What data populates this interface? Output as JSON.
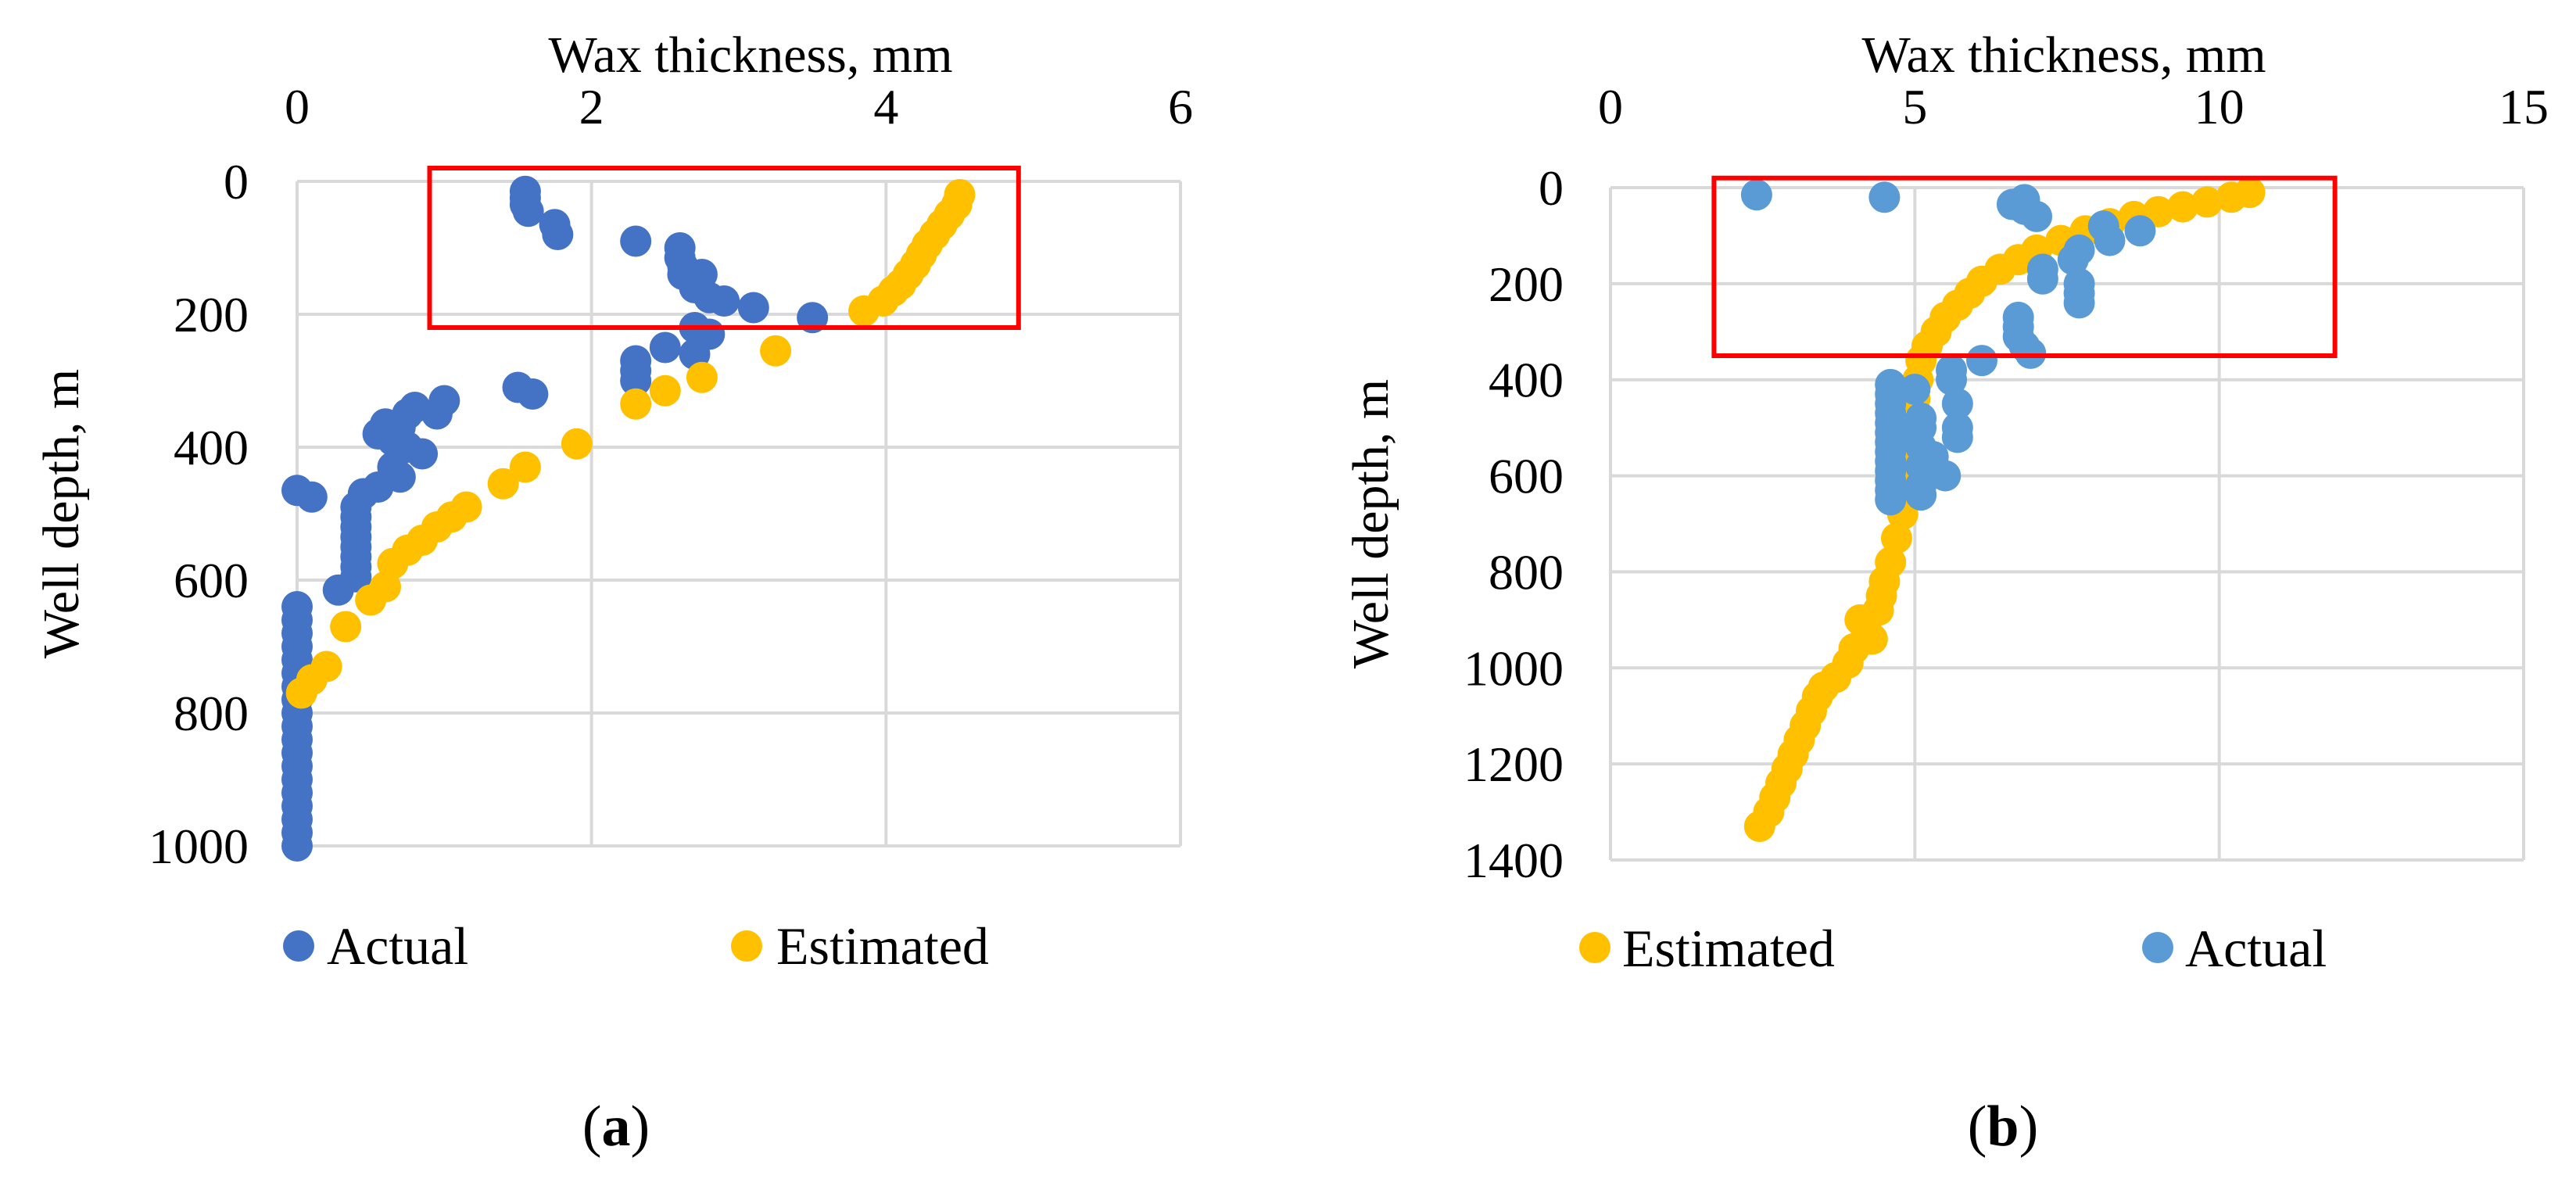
{
  "figure": {
    "panels": [
      {
        "label_open": "(",
        "label_letter": "a",
        "label_close": ")"
      },
      {
        "label_open": "(",
        "label_letter": "b",
        "label_close": ")"
      }
    ]
  },
  "colors": {
    "actual_a": "#4472C4",
    "actual_b": "#5B9BD5",
    "estimated": "#FFC000",
    "highlight_box": "#FF0000",
    "grid": "#D9D9D9"
  },
  "chart_data": [
    {
      "type": "scatter",
      "title": "",
      "xlabel": "Wax thickness, mm",
      "ylabel": "Well depth, m",
      "xlim": [
        0,
        6
      ],
      "ylim": [
        0,
        1000
      ],
      "y_reversed": true,
      "x_axis_position": "top",
      "xticks": [
        0,
        2,
        4,
        6
      ],
      "yticks": [
        0,
        200,
        400,
        600,
        800,
        1000
      ],
      "grid": true,
      "legend": {
        "position": "bottom",
        "order": [
          "Actual",
          "Estimated"
        ]
      },
      "highlight_region": {
        "x": [
          0.9,
          4.9
        ],
        "y": [
          -20,
          220
        ]
      },
      "series": [
        {
          "name": "Actual",
          "color": "#4472C4",
          "points": [
            [
              1.55,
              15
            ],
            [
              1.55,
              25
            ],
            [
              1.55,
              35
            ],
            [
              1.57,
              45
            ],
            [
              1.75,
              65
            ],
            [
              1.77,
              80
            ],
            [
              2.3,
              90
            ],
            [
              2.6,
              100
            ],
            [
              2.6,
              115
            ],
            [
              2.62,
              128
            ],
            [
              2.62,
              140
            ],
            [
              2.75,
              140
            ],
            [
              2.7,
              160
            ],
            [
              2.8,
              175
            ],
            [
              2.9,
              180
            ],
            [
              3.1,
              190
            ],
            [
              3.5,
              205
            ],
            [
              2.7,
              220
            ],
            [
              2.8,
              230
            ],
            [
              2.5,
              250
            ],
            [
              2.7,
              260
            ],
            [
              2.3,
              270
            ],
            [
              2.3,
              285
            ],
            [
              2.3,
              300
            ],
            [
              1.5,
              310
            ],
            [
              1.6,
              320
            ],
            [
              1.0,
              330
            ],
            [
              0.8,
              340
            ],
            [
              0.75,
              350
            ],
            [
              0.95,
              350
            ],
            [
              0.6,
              365
            ],
            [
              0.7,
              370
            ],
            [
              0.55,
              380
            ],
            [
              0.65,
              390
            ],
            [
              0.75,
              400
            ],
            [
              0.85,
              410
            ],
            [
              0.65,
              430
            ],
            [
              0.7,
              445
            ],
            [
              0.55,
              460
            ],
            [
              0.45,
              470
            ],
            [
              0.0,
              465
            ],
            [
              0.1,
              475
            ],
            [
              0.4,
              490
            ],
            [
              0.4,
              505
            ],
            [
              0.4,
              520
            ],
            [
              0.4,
              535
            ],
            [
              0.4,
              550
            ],
            [
              0.4,
              565
            ],
            [
              0.4,
              580
            ],
            [
              0.4,
              595
            ],
            [
              0.28,
              615
            ],
            [
              0.0,
              640
            ],
            [
              0.0,
              660
            ],
            [
              0.0,
              680
            ],
            [
              0.0,
              700
            ],
            [
              0.0,
              720
            ],
            [
              0.0,
              740
            ],
            [
              0.0,
              760
            ],
            [
              0.0,
              780
            ],
            [
              0.0,
              800
            ],
            [
              0.0,
              820
            ],
            [
              0.0,
              840
            ],
            [
              0.0,
              860
            ],
            [
              0.0,
              880
            ],
            [
              0.0,
              900
            ],
            [
              0.0,
              920
            ],
            [
              0.0,
              940
            ],
            [
              0.0,
              960
            ],
            [
              0.0,
              980
            ],
            [
              0.0,
              1000
            ]
          ]
        },
        {
          "name": "Estimated",
          "color": "#FFC000",
          "points": [
            [
              4.5,
              20
            ],
            [
              4.48,
              35
            ],
            [
              4.43,
              50
            ],
            [
              4.38,
              65
            ],
            [
              4.33,
              80
            ],
            [
              4.28,
              95
            ],
            [
              4.24,
              110
            ],
            [
              4.2,
              125
            ],
            [
              4.15,
              140
            ],
            [
              4.1,
              155
            ],
            [
              4.05,
              165
            ],
            [
              3.98,
              180
            ],
            [
              3.85,
              195
            ],
            [
              3.25,
              255
            ],
            [
              2.75,
              295
            ],
            [
              2.5,
              315
            ],
            [
              2.3,
              335
            ],
            [
              1.9,
              395
            ],
            [
              1.55,
              430
            ],
            [
              1.4,
              455
            ],
            [
              1.15,
              490
            ],
            [
              1.05,
              505
            ],
            [
              0.95,
              520
            ],
            [
              0.85,
              540
            ],
            [
              0.75,
              555
            ],
            [
              0.65,
              575
            ],
            [
              0.6,
              610
            ],
            [
              0.5,
              630
            ],
            [
              0.33,
              670
            ],
            [
              0.2,
              730
            ],
            [
              0.1,
              750
            ],
            [
              0.03,
              770
            ]
          ]
        }
      ]
    },
    {
      "type": "scatter",
      "title": "",
      "xlabel": "Wax thickness, mm",
      "ylabel": "Well depth, m",
      "xlim": [
        0,
        15
      ],
      "ylim": [
        0,
        1400
      ],
      "y_reversed": true,
      "x_axis_position": "top",
      "xticks": [
        0,
        5,
        10,
        15
      ],
      "yticks": [
        0,
        200,
        400,
        600,
        800,
        1000,
        1200,
        1400
      ],
      "grid": true,
      "legend": {
        "position": "bottom",
        "order": [
          "Estimated",
          "Actual"
        ]
      },
      "highlight_region": {
        "x": [
          1.7,
          11.9
        ],
        "y": [
          -20,
          350
        ]
      },
      "series": [
        {
          "name": "Estimated",
          "color": "#FFC000",
          "points": [
            [
              10.5,
              10
            ],
            [
              10.2,
              20
            ],
            [
              9.8,
              30
            ],
            [
              9.4,
              40
            ],
            [
              9.0,
              50
            ],
            [
              8.6,
              60
            ],
            [
              8.2,
              75
            ],
            [
              7.8,
              90
            ],
            [
              7.4,
              110
            ],
            [
              7.0,
              130
            ],
            [
              6.7,
              150
            ],
            [
              6.4,
              170
            ],
            [
              6.1,
              195
            ],
            [
              5.9,
              220
            ],
            [
              5.7,
              245
            ],
            [
              5.5,
              270
            ],
            [
              5.35,
              300
            ],
            [
              5.2,
              330
            ],
            [
              5.1,
              360
            ],
            [
              5.05,
              400
            ],
            [
              5.0,
              440
            ],
            [
              4.95,
              500
            ],
            [
              4.9,
              560
            ],
            [
              4.85,
              620
            ],
            [
              4.8,
              680
            ],
            [
              4.7,
              730
            ],
            [
              4.6,
              780
            ],
            [
              4.5,
              820
            ],
            [
              4.45,
              850
            ],
            [
              4.4,
              880
            ],
            [
              4.1,
              900
            ],
            [
              4.2,
              920
            ],
            [
              4.3,
              940
            ],
            [
              4.0,
              960
            ],
            [
              3.9,
              990
            ],
            [
              3.7,
              1020
            ],
            [
              3.5,
              1040
            ],
            [
              3.4,
              1060
            ],
            [
              3.3,
              1090
            ],
            [
              3.2,
              1120
            ],
            [
              3.1,
              1150
            ],
            [
              3.0,
              1180
            ],
            [
              2.9,
              1210
            ],
            [
              2.8,
              1240
            ],
            [
              2.7,
              1270
            ],
            [
              2.6,
              1300
            ],
            [
              2.45,
              1330
            ]
          ]
        },
        {
          "name": "Actual",
          "color": "#5B9BD5",
          "points": [
            [
              2.4,
              15
            ],
            [
              4.5,
              20
            ],
            [
              6.8,
              25
            ],
            [
              6.6,
              35
            ],
            [
              6.8,
              45
            ],
            [
              7.0,
              60
            ],
            [
              8.1,
              80
            ],
            [
              8.7,
              90
            ],
            [
              8.2,
              110
            ],
            [
              7.7,
              130
            ],
            [
              7.6,
              150
            ],
            [
              7.1,
              170
            ],
            [
              7.1,
              190
            ],
            [
              7.7,
              200
            ],
            [
              7.7,
              220
            ],
            [
              7.7,
              240
            ],
            [
              6.7,
              270
            ],
            [
              6.7,
              290
            ],
            [
              6.7,
              310
            ],
            [
              6.8,
              330
            ],
            [
              6.9,
              345
            ],
            [
              6.1,
              360
            ],
            [
              5.6,
              380
            ],
            [
              5.6,
              400
            ],
            [
              4.6,
              410
            ],
            [
              5.0,
              420
            ],
            [
              4.6,
              430
            ],
            [
              5.7,
              450
            ],
            [
              4.6,
              450
            ],
            [
              4.6,
              470
            ],
            [
              5.1,
              480
            ],
            [
              4.6,
              490
            ],
            [
              5.7,
              500
            ],
            [
              5.1,
              500
            ],
            [
              4.6,
              510
            ],
            [
              5.7,
              520
            ],
            [
              5.0,
              520
            ],
            [
              4.6,
              530
            ],
            [
              5.1,
              540
            ],
            [
              4.6,
              550
            ],
            [
              5.3,
              560
            ],
            [
              4.6,
              570
            ],
            [
              5.1,
              580
            ],
            [
              4.6,
              590
            ],
            [
              5.5,
              600
            ],
            [
              4.6,
              610
            ],
            [
              5.1,
              620
            ],
            [
              4.6,
              630
            ],
            [
              5.1,
              640
            ],
            [
              4.6,
              650
            ]
          ]
        }
      ]
    }
  ]
}
